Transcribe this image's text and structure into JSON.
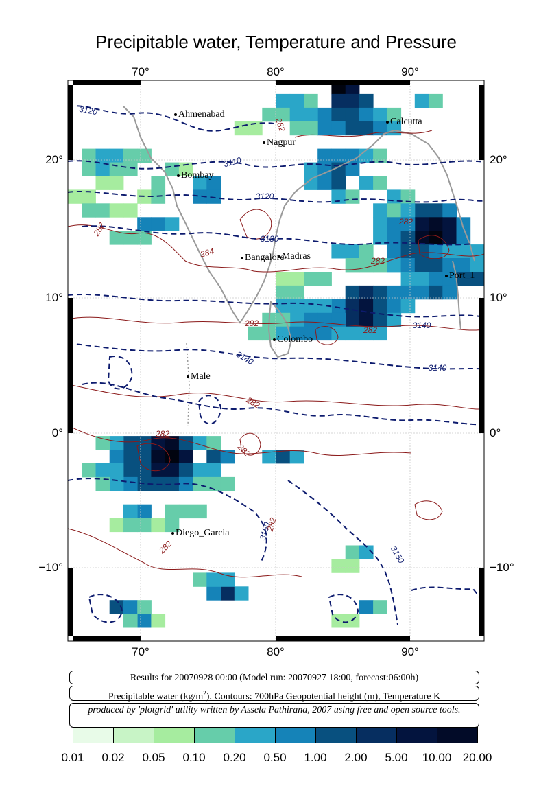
{
  "title": "Precipitable water, Temperature and Pressure",
  "axes": {
    "lon_ticks": [
      "70°",
      "80°",
      "90°"
    ],
    "lat_ticks": [
      "20°",
      "10°",
      "0°",
      "−10°"
    ]
  },
  "cities": [
    {
      "name": "Ahmenabad"
    },
    {
      "name": "Nagpur"
    },
    {
      "name": "Calcutta"
    },
    {
      "name": "Bombay"
    },
    {
      "name": "Bangalore"
    },
    {
      "name": "Madras"
    },
    {
      "name": "Port_1"
    },
    {
      "name": "Colombo"
    },
    {
      "name": "Male"
    },
    {
      "name": "Diego_Garcia"
    }
  ],
  "contour_labels": {
    "geopotential": [
      "3120",
      "3110",
      "3120",
      "3130",
      "3140",
      "3140",
      "3140",
      "3150",
      "3150"
    ],
    "temperature": [
      "282",
      "282",
      "284",
      "282",
      "282",
      "282",
      "282",
      "282",
      "282",
      "282",
      "282",
      "282"
    ]
  },
  "info": {
    "results": "Results for 20070928 00:00 (Model run: 20070927 18:00, forecast:06:00h)",
    "variable_prefix": "Precipitable water (kg/m",
    "variable_sup": "2",
    "variable_suffix": ").  Contours: 700hPa Geopotential height (m), Temperature K",
    "credit": "produced by 'plotgrid' utility written by Assela Pathirana, 2007 using free and open source tools."
  },
  "legend": {
    "labels": [
      "0.01",
      "0.02",
      "0.05",
      "0.10",
      "0.20",
      "0.50",
      "1.00",
      "2.00",
      "5.00",
      "10.00",
      "20.00"
    ],
    "colors": [
      "#e8fbe8",
      "#c8f4c6",
      "#a6ec9f",
      "#66cdaa",
      "#2aa6c8",
      "#1583b8",
      "#08507f",
      "#062e60",
      "#03143e",
      "#020b28",
      "#01040f"
    ]
  },
  "chart_data": {
    "type": "heatmap",
    "variable": "Precipitable water (kg/m2)",
    "lon_range": [
      65,
      95
    ],
    "lat_range": [
      -15,
      26
    ],
    "cell_deg": 1,
    "cells": [
      [
        84,
        25,
        10
      ],
      [
        85,
        25,
        8
      ],
      [
        84,
        24,
        7
      ],
      [
        85,
        24,
        7
      ],
      [
        86,
        24,
        6
      ],
      [
        80,
        24,
        4
      ],
      [
        81,
        24,
        4
      ],
      [
        82,
        24,
        3
      ],
      [
        90,
        24,
        4
      ],
      [
        91,
        24,
        3
      ],
      [
        83,
        23,
        5
      ],
      [
        84,
        23,
        6
      ],
      [
        85,
        23,
        6
      ],
      [
        86,
        23,
        5
      ],
      [
        87,
        23,
        4
      ],
      [
        79,
        23,
        3
      ],
      [
        80,
        23,
        3
      ],
      [
        81,
        23,
        4
      ],
      [
        82,
        23,
        4
      ],
      [
        88,
        23,
        3
      ],
      [
        83,
        22,
        5
      ],
      [
        84,
        22,
        5
      ],
      [
        85,
        22,
        6
      ],
      [
        86,
        22,
        6
      ],
      [
        87,
        22,
        5
      ],
      [
        88,
        22,
        4
      ],
      [
        81,
        22,
        3
      ],
      [
        82,
        22,
        3
      ],
      [
        77,
        22,
        2
      ],
      [
        78,
        22,
        2
      ],
      [
        66,
        20,
        3
      ],
      [
        67,
        20,
        4
      ],
      [
        68,
        20,
        4
      ],
      [
        69,
        20,
        3
      ],
      [
        70,
        20,
        3
      ],
      [
        83,
        20,
        5
      ],
      [
        84,
        20,
        5
      ],
      [
        85,
        20,
        5
      ],
      [
        86,
        20,
        4
      ],
      [
        87,
        20,
        3
      ],
      [
        66,
        19,
        3
      ],
      [
        67,
        19,
        4
      ],
      [
        68,
        19,
        3
      ],
      [
        69,
        19,
        3
      ],
      [
        72,
        19,
        3
      ],
      [
        73,
        19,
        2
      ],
      [
        82,
        19,
        4
      ],
      [
        83,
        19,
        5
      ],
      [
        84,
        19,
        6
      ],
      [
        85,
        19,
        5
      ],
      [
        71,
        18,
        3
      ],
      [
        74,
        18,
        4
      ],
      [
        75,
        18,
        5
      ],
      [
        82,
        18,
        4
      ],
      [
        83,
        18,
        5
      ],
      [
        84,
        18,
        6
      ],
      [
        86,
        18,
        4
      ],
      [
        87,
        18,
        3
      ],
      [
        67,
        18,
        2
      ],
      [
        68,
        18,
        2
      ],
      [
        74,
        17,
        5
      ],
      [
        75,
        17,
        5
      ],
      [
        84,
        17,
        4
      ],
      [
        85,
        17,
        3
      ],
      [
        88,
        17,
        4
      ],
      [
        89,
        17,
        3
      ],
      [
        65,
        17,
        2
      ],
      [
        66,
        17,
        2
      ],
      [
        70,
        17,
        2
      ],
      [
        71,
        17,
        3
      ],
      [
        90,
        16,
        6
      ],
      [
        91,
        16,
        6
      ],
      [
        92,
        16,
        5
      ],
      [
        87,
        16,
        4
      ],
      [
        88,
        16,
        3
      ],
      [
        89,
        16,
        4
      ],
      [
        66,
        16,
        3
      ],
      [
        67,
        16,
        3
      ],
      [
        68,
        16,
        2
      ],
      [
        69,
        16,
        2
      ],
      [
        90,
        15,
        8
      ],
      [
        91,
        15,
        9
      ],
      [
        92,
        15,
        8
      ],
      [
        70,
        15,
        5
      ],
      [
        71,
        15,
        5
      ],
      [
        72,
        15,
        4
      ],
      [
        87,
        15,
        4
      ],
      [
        88,
        15,
        5
      ],
      [
        89,
        15,
        5
      ],
      [
        93,
        15,
        5
      ],
      [
        90,
        14,
        9
      ],
      [
        91,
        14,
        10
      ],
      [
        92,
        14,
        8
      ],
      [
        87,
        14,
        4
      ],
      [
        88,
        14,
        5
      ],
      [
        89,
        14,
        6
      ],
      [
        93,
        14,
        5
      ],
      [
        68,
        14,
        3
      ],
      [
        69,
        14,
        3
      ],
      [
        70,
        14,
        3
      ],
      [
        84,
        13,
        4
      ],
      [
        85,
        13,
        4
      ],
      [
        86,
        13,
        3
      ],
      [
        88,
        13,
        5
      ],
      [
        89,
        13,
        6
      ],
      [
        90,
        13,
        6
      ],
      [
        91,
        13,
        5
      ],
      [
        92,
        13,
        4
      ],
      [
        93,
        13,
        4
      ],
      [
        94,
        13,
        4
      ],
      [
        88,
        12,
        4
      ],
      [
        89,
        12,
        5
      ],
      [
        90,
        12,
        6
      ],
      [
        91,
        12,
        6
      ],
      [
        92,
        12,
        5
      ],
      [
        93,
        12,
        5
      ],
      [
        94,
        12,
        4
      ],
      [
        85,
        12,
        3
      ],
      [
        86,
        12,
        3
      ],
      [
        87,
        12,
        3
      ],
      [
        91,
        11,
        5
      ],
      [
        92,
        11,
        5
      ],
      [
        93,
        11,
        6
      ],
      [
        94,
        11,
        6
      ],
      [
        89,
        11,
        4
      ],
      [
        90,
        11,
        4
      ],
      [
        80,
        11,
        2
      ],
      [
        81,
        11,
        2
      ],
      [
        82,
        11,
        3
      ],
      [
        83,
        11,
        3
      ],
      [
        85,
        10,
        6
      ],
      [
        86,
        10,
        7
      ],
      [
        87,
        10,
        6
      ],
      [
        88,
        10,
        5
      ],
      [
        89,
        10,
        5
      ],
      [
        90,
        10,
        5
      ],
      [
        91,
        10,
        6
      ],
      [
        92,
        10,
        5
      ],
      [
        80,
        10,
        3
      ],
      [
        81,
        10,
        3
      ],
      [
        84,
        9,
        5
      ],
      [
        85,
        9,
        7
      ],
      [
        86,
        9,
        8
      ],
      [
        87,
        9,
        6
      ],
      [
        88,
        9,
        5
      ],
      [
        82,
        9,
        4
      ],
      [
        83,
        9,
        4
      ],
      [
        80,
        9,
        4
      ],
      [
        81,
        9,
        4
      ],
      [
        89,
        9,
        4
      ],
      [
        85,
        8,
        7
      ],
      [
        86,
        8,
        8
      ],
      [
        87,
        8,
        6
      ],
      [
        82,
        8,
        5
      ],
      [
        83,
        8,
        5
      ],
      [
        84,
        8,
        5
      ],
      [
        81,
        8,
        4
      ],
      [
        80,
        8,
        3
      ],
      [
        79,
        8,
        3
      ],
      [
        88,
        8,
        4
      ],
      [
        80,
        7,
        4
      ],
      [
        81,
        7,
        5
      ],
      [
        82,
        7,
        5
      ],
      [
        83,
        7,
        5
      ],
      [
        84,
        7,
        4
      ],
      [
        85,
        7,
        4
      ],
      [
        86,
        7,
        4
      ],
      [
        87,
        7,
        4
      ],
      [
        78,
        7,
        3
      ],
      [
        79,
        7,
        3
      ],
      [
        70,
        -1,
        6
      ],
      [
        71,
        -1,
        8
      ],
      [
        72,
        -1,
        9
      ],
      [
        69,
        -1,
        6
      ],
      [
        73,
        -1,
        6
      ],
      [
        68,
        -1,
        4
      ],
      [
        67,
        -1,
        3
      ],
      [
        74,
        -1,
        4
      ],
      [
        75,
        -1,
        3
      ],
      [
        80,
        -2,
        6
      ],
      [
        70,
        -2,
        6
      ],
      [
        71,
        -2,
        9
      ],
      [
        72,
        -2,
        10
      ],
      [
        73,
        -2,
        8
      ],
      [
        69,
        -2,
        6
      ],
      [
        68,
        -2,
        5
      ],
      [
        75,
        -2,
        6
      ],
      [
        76,
        -2,
        5
      ],
      [
        79,
        -2,
        4
      ],
      [
        81,
        -2,
        4
      ],
      [
        70,
        -3,
        6
      ],
      [
        71,
        -3,
        8
      ],
      [
        72,
        -3,
        8
      ],
      [
        73,
        -3,
        6
      ],
      [
        69,
        -3,
        6
      ],
      [
        68,
        -3,
        4
      ],
      [
        74,
        -3,
        4
      ],
      [
        75,
        -3,
        4
      ],
      [
        66,
        -3,
        3
      ],
      [
        67,
        -3,
        4
      ],
      [
        70,
        -4,
        6
      ],
      [
        71,
        -4,
        6
      ],
      [
        72,
        -4,
        6
      ],
      [
        69,
        -4,
        5
      ],
      [
        73,
        -4,
        5
      ],
      [
        68,
        -4,
        4
      ],
      [
        74,
        -4,
        3
      ],
      [
        75,
        -4,
        3
      ],
      [
        67,
        -4,
        3
      ],
      [
        76,
        -4,
        3
      ],
      [
        70,
        -6,
        5
      ],
      [
        69,
        -6,
        4
      ],
      [
        72,
        -6,
        3
      ],
      [
        73,
        -6,
        3
      ],
      [
        74,
        -6,
        3
      ],
      [
        68,
        -7,
        2
      ],
      [
        69,
        -7,
        3
      ],
      [
        70,
        -7,
        3
      ],
      [
        71,
        -7,
        2
      ],
      [
        72,
        -7,
        3
      ],
      [
        76,
        -12,
        7
      ],
      [
        75,
        -12,
        5
      ],
      [
        77,
        -12,
        4
      ],
      [
        74,
        -11,
        3
      ],
      [
        75,
        -11,
        4
      ],
      [
        76,
        -11,
        4
      ],
      [
        68,
        -13,
        6
      ],
      [
        69,
        -13,
        5
      ],
      [
        70,
        -14,
        5
      ],
      [
        86,
        -13,
        5
      ],
      [
        85,
        -9,
        3
      ],
      [
        86,
        -9,
        4
      ],
      [
        84,
        -10,
        2
      ],
      [
        85,
        -10,
        2
      ],
      [
        87,
        -13,
        3
      ],
      [
        84,
        -14,
        2
      ],
      [
        85,
        -14,
        2
      ],
      [
        70,
        -13,
        3
      ],
      [
        71,
        -14,
        2
      ],
      [
        69,
        -14,
        3
      ]
    ]
  }
}
